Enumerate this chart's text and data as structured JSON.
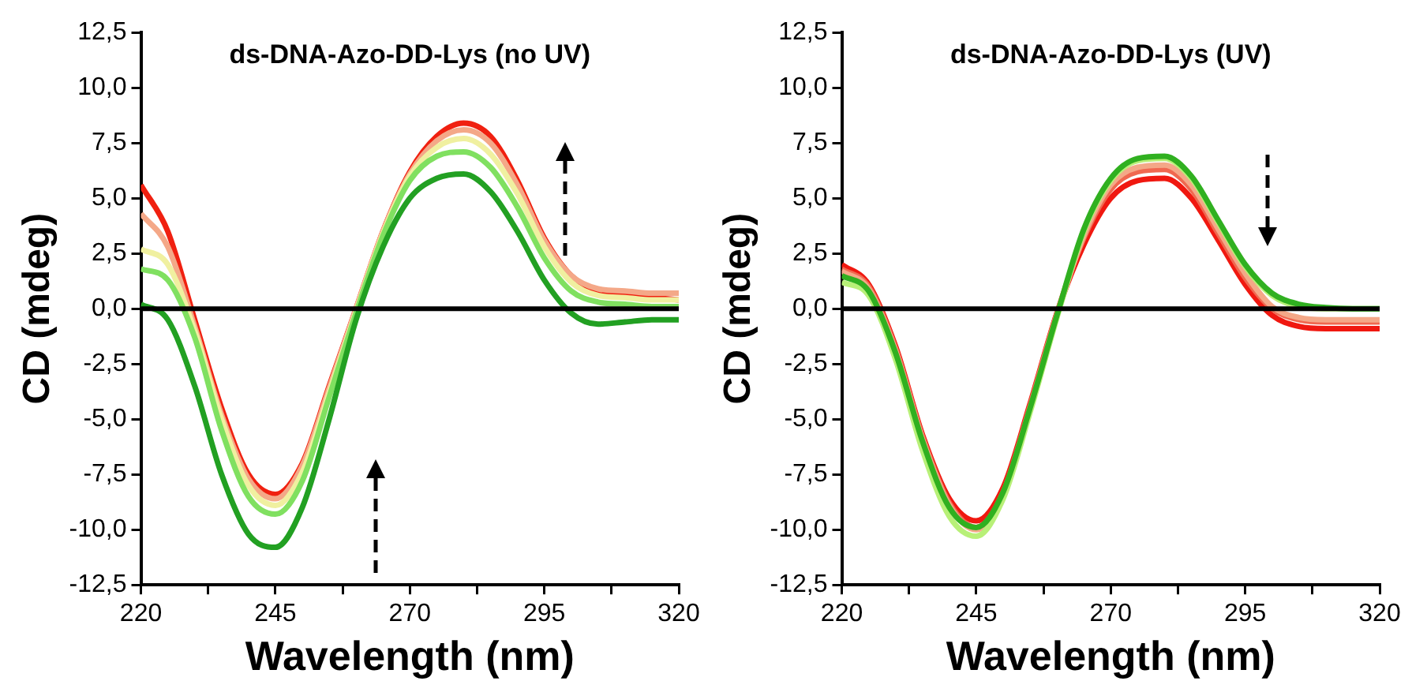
{
  "chart_data": [
    {
      "type": "line",
      "title": "ds-DNA-Azo-DD-Lys (no UV)",
      "xlabel": "Wavelength (nm)",
      "ylabel": "CD (mdeg)",
      "marker": "none",
      "line_style": "solid",
      "legend": false,
      "grid": false,
      "x": [
        220,
        225,
        230,
        235,
        240,
        245,
        250,
        255,
        260,
        265,
        270,
        275,
        280,
        285,
        290,
        295,
        300,
        305,
        310,
        315,
        320
      ],
      "xlim": [
        220,
        320
      ],
      "xticks": [
        220,
        {
          "value": 232.5,
          "label": null
        },
        245,
        {
          "value": 257.5,
          "label": null
        },
        270,
        {
          "value": 282.5,
          "label": null
        },
        295,
        {
          "value": 307.5,
          "label": null
        },
        320
      ],
      "ylim": [
        -12.5,
        12.5
      ],
      "yticks": [
        {
          "value": -12.5,
          "label": "-12,5"
        },
        {
          "value": -10,
          "label": "-10,0"
        },
        {
          "value": -7.5,
          "label": "-7,5"
        },
        {
          "value": -5,
          "label": "-5,0"
        },
        {
          "value": -2.5,
          "label": "-2,5"
        },
        {
          "value": 0,
          "label": "0,0"
        },
        {
          "value": 2.5,
          "label": "2,5"
        },
        {
          "value": 5,
          "label": "5,0"
        },
        {
          "value": 7.5,
          "label": "7,5"
        },
        {
          "value": 10,
          "label": "10,0"
        },
        {
          "value": 12.5,
          "label": "12,5"
        }
      ],
      "ref_lines": [
        {
          "axis": "y",
          "value": 0,
          "color": "#000000"
        }
      ],
      "series": [
        {
          "color": "#22a022",
          "values": [
            0.2,
            -0.5,
            -3.5,
            -7.5,
            -10.2,
            -10.8,
            -9.0,
            -5.0,
            -0.5,
            2.8,
            5.0,
            5.9,
            6.1,
            5.3,
            3.5,
            1.3,
            -0.2,
            -0.7,
            -0.6,
            -0.5,
            -0.5
          ]
        },
        {
          "color": "#80e060",
          "values": [
            1.8,
            1.3,
            -1.3,
            -5.5,
            -8.5,
            -9.3,
            -7.8,
            -4.0,
            -0.2,
            3.3,
            5.8,
            6.9,
            7.1,
            6.4,
            4.6,
            2.3,
            0.8,
            0.3,
            0.2,
            0.1,
            0.1
          ]
        },
        {
          "color": "#f0f0a0",
          "values": [
            2.7,
            2.0,
            -1.0,
            -5.0,
            -8.0,
            -8.9,
            -7.4,
            -3.8,
            -0.1,
            3.4,
            6.0,
            7.3,
            7.7,
            7.0,
            5.2,
            2.8,
            1.2,
            0.6,
            0.5,
            0.4,
            0.4
          ]
        },
        {
          "color": "#f4a888",
          "values": [
            4.3,
            2.8,
            -0.8,
            -4.8,
            -7.7,
            -8.6,
            -7.1,
            -3.6,
            0.0,
            3.5,
            6.1,
            7.6,
            8.1,
            7.5,
            5.6,
            3.1,
            1.5,
            0.9,
            0.8,
            0.7,
            0.7
          ]
        },
        {
          "color": "#f02010",
          "values": [
            5.6,
            3.5,
            -0.5,
            -4.5,
            -7.5,
            -8.4,
            -7.0,
            -3.5,
            0.0,
            3.5,
            6.2,
            7.8,
            8.4,
            7.8,
            5.8,
            3.2,
            1.5,
            0.8,
            0.6,
            0.5,
            0.4
          ]
        }
      ]
    },
    {
      "type": "line",
      "title": "ds-DNA-Azo-DD-Lys (UV)",
      "xlabel": "Wavelength (nm)",
      "ylabel": "CD (mdeg)",
      "marker": "none",
      "line_style": "solid",
      "legend": false,
      "grid": false,
      "x": [
        220,
        225,
        230,
        235,
        240,
        245,
        250,
        255,
        260,
        265,
        270,
        275,
        280,
        285,
        290,
        295,
        300,
        305,
        310,
        315,
        320
      ],
      "xlim": [
        220,
        320
      ],
      "xticks": [
        220,
        {
          "value": 232.5,
          "label": null
        },
        245,
        {
          "value": 257.5,
          "label": null
        },
        270,
        {
          "value": 282.5,
          "label": null
        },
        295,
        {
          "value": 307.5,
          "label": null
        },
        320
      ],
      "ylim": [
        -12.5,
        12.5
      ],
      "yticks": [
        {
          "value": -12.5,
          "label": "-12,5"
        },
        {
          "value": -10,
          "label": "-10,0"
        },
        {
          "value": -7.5,
          "label": "-7,5"
        },
        {
          "value": -5,
          "label": "-5,0"
        },
        {
          "value": -2.5,
          "label": "-2,5"
        },
        {
          "value": 0,
          "label": "0,0"
        },
        {
          "value": 2.5,
          "label": "2,5"
        },
        {
          "value": 5,
          "label": "5,0"
        },
        {
          "value": 7.5,
          "label": "7,5"
        },
        {
          "value": 10,
          "label": "10,0"
        },
        {
          "value": 12.5,
          "label": "12,5"
        }
      ],
      "ref_lines": [
        {
          "axis": "y",
          "value": 0,
          "color": "#000000"
        }
      ],
      "series": [
        {
          "color": "#30b020",
          "values": [
            1.5,
            0.8,
            -2.0,
            -6.0,
            -9.0,
            -9.9,
            -8.3,
            -4.5,
            -0.3,
            3.6,
            5.9,
            6.8,
            6.9,
            6.0,
            4.0,
            2.0,
            0.7,
            0.2,
            0.05,
            0.0,
            0.0
          ]
        },
        {
          "color": "#b8f078",
          "values": [
            1.2,
            0.6,
            -2.3,
            -6.4,
            -9.4,
            -10.3,
            -8.6,
            -4.7,
            -0.4,
            3.5,
            5.8,
            6.7,
            6.8,
            5.9,
            3.9,
            1.9,
            0.6,
            0.1,
            0.0,
            0.0,
            0.0
          ]
        },
        {
          "color": "#f4a888",
          "values": [
            1.7,
            0.9,
            -1.9,
            -5.9,
            -8.9,
            -10.0,
            -8.4,
            -4.5,
            -0.3,
            3.3,
            5.6,
            6.4,
            6.5,
            5.6,
            3.6,
            1.6,
            0.1,
            -0.4,
            -0.5,
            -0.5,
            -0.5
          ]
        },
        {
          "color": "#f06850",
          "values": [
            1.8,
            1.0,
            -1.8,
            -5.8,
            -8.8,
            -9.9,
            -8.3,
            -4.4,
            -0.2,
            3.2,
            5.4,
            6.2,
            6.3,
            5.4,
            3.4,
            1.4,
            0.0,
            -0.5,
            -0.6,
            -0.6,
            -0.6
          ]
        },
        {
          "color": "#f01810",
          "values": [
            2.0,
            1.1,
            -1.7,
            -5.7,
            -8.6,
            -9.6,
            -8.1,
            -4.3,
            -0.2,
            2.9,
            5.0,
            5.8,
            5.9,
            5.0,
            3.1,
            1.1,
            -0.3,
            -0.8,
            -0.9,
            -0.9,
            -0.9
          ]
        }
      ]
    }
  ]
}
